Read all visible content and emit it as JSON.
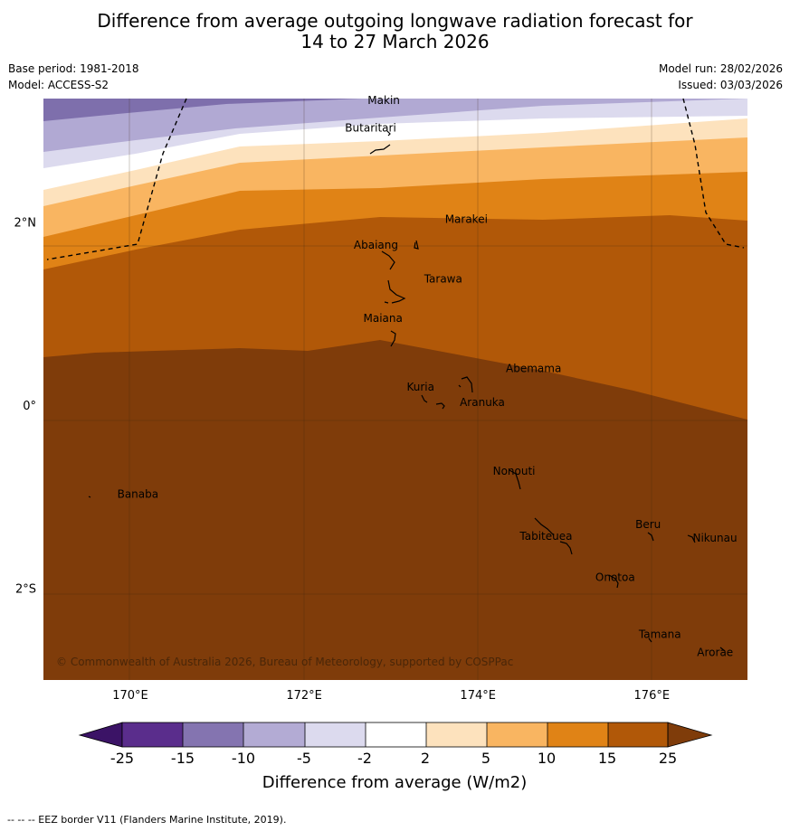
{
  "title": {
    "line1": "Difference from average outgoing longwave radiation forecast for",
    "line2": "14 to 27 March 2026"
  },
  "meta": {
    "base_period": "Base period: 1981-2018",
    "model": "Model: ACCESS-S2",
    "model_run": "Model run: 28/02/2026",
    "issued": "Issued: 03/03/2026"
  },
  "map": {
    "lon_range": [
      169.0,
      177.1
    ],
    "lat_range": [
      -3.0,
      3.35
    ],
    "lon_ticks": [
      {
        "lon": 170,
        "label": "170°E"
      },
      {
        "lon": 172,
        "label": "172°E"
      },
      {
        "lon": 174,
        "label": "174°E"
      },
      {
        "lon": 176,
        "label": "176°E"
      }
    ],
    "lat_ticks": [
      {
        "lat": 2,
        "label": "2°N"
      },
      {
        "lat": 0,
        "label": "0°"
      },
      {
        "lat": -2,
        "label": "2°S"
      }
    ],
    "copyright": "© Commonwealth of Australia 2026, Bureau of Meteorology, supported by COSPPac",
    "places": [
      {
        "name": "Makin",
        "lon": 172.73,
        "lat": 3.33
      },
      {
        "name": "Butaritari",
        "lon": 172.47,
        "lat": 3.03
      },
      {
        "name": "Marakei",
        "lon": 173.62,
        "lat": 2.03
      },
      {
        "name": "Abaiang",
        "lon": 172.57,
        "lat": 1.75
      },
      {
        "name": "Tarawa",
        "lon": 173.38,
        "lat": 1.38
      },
      {
        "name": "Maiana",
        "lon": 172.68,
        "lat": 0.95
      },
      {
        "name": "Abemama",
        "lon": 174.32,
        "lat": 0.4
      },
      {
        "name": "Kuria",
        "lon": 173.18,
        "lat": 0.2
      },
      {
        "name": "Aranuka",
        "lon": 173.79,
        "lat": 0.03
      },
      {
        "name": "Banaba",
        "lon": 169.85,
        "lat": -0.97
      },
      {
        "name": "Nonouti",
        "lon": 174.17,
        "lat": -0.72
      },
      {
        "name": "Beru",
        "lon": 175.81,
        "lat": -1.3
      },
      {
        "name": "Tabiteuea",
        "lon": 174.48,
        "lat": -1.43
      },
      {
        "name": "Nikunau",
        "lon": 176.47,
        "lat": -1.45
      },
      {
        "name": "Onotoa",
        "lon": 175.35,
        "lat": -1.88
      },
      {
        "name": "Tamana",
        "lon": 175.85,
        "lat": -2.5
      },
      {
        "name": "Arorae",
        "lon": 176.52,
        "lat": -2.7
      }
    ]
  },
  "legend": {
    "title": "Difference from average (W/m2)",
    "ticks": [
      "-25",
      "-15",
      "-10",
      "-5",
      "-2",
      "2",
      "5",
      "10",
      "15",
      "25"
    ],
    "colors": [
      "#3b1366",
      "#5a2d8c",
      "#8474b0",
      "#b3abd4",
      "#dcdaee",
      "#ffffff",
      "#fde2bd",
      "#f9b561",
      "#e08316",
      "#b15808",
      "#7f3c0a"
    ]
  },
  "footnote": "--  --  -- EEZ border V11 (Flanders Marine Institute, 2019)."
}
